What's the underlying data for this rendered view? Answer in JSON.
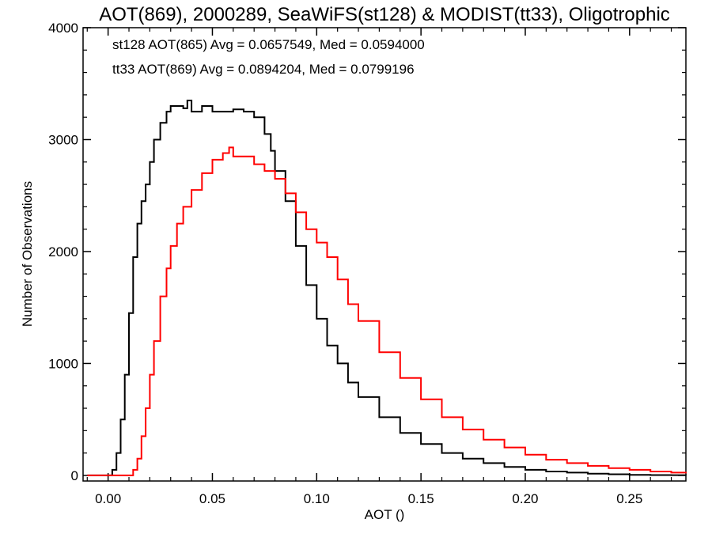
{
  "chart_data": {
    "type": "line",
    "title": "AOT(869), 2000289, SeaWiFS(st128) & MODIST(tt33), Oligotrophic",
    "xlabel": "AOT ()",
    "ylabel": "Number of Observations",
    "xlim": [
      -0.012,
      0.277
    ],
    "ylim": [
      -50,
      4000
    ],
    "xticks": [
      "0.00",
      "0.05",
      "0.10",
      "0.15",
      "0.20",
      "0.25"
    ],
    "xtick_values": [
      0,
      0.05,
      0.1,
      0.15,
      0.2,
      0.25
    ],
    "yticks": [
      "0",
      "1000",
      "2000",
      "3000",
      "4000"
    ],
    "ytick_values": [
      0,
      1000,
      2000,
      3000,
      4000
    ],
    "grid": false,
    "annotations": [
      {
        "text": "st128 AOT(865) Avg = 0.0657549, Med = 0.0594000",
        "color": "#000000"
      },
      {
        "text": "tt33 AOT(869) Avg = 0.0894204, Med = 0.0799196",
        "color": "#ff0000"
      }
    ],
    "series": [
      {
        "color": "#000000",
        "x": [
          -0.01,
          0.0,
          0.002,
          0.004,
          0.006,
          0.008,
          0.01,
          0.012,
          0.014,
          0.016,
          0.018,
          0.02,
          0.022,
          0.025,
          0.028,
          0.03,
          0.033,
          0.036,
          0.038,
          0.04,
          0.045,
          0.05,
          0.055,
          0.06,
          0.065,
          0.07,
          0.075,
          0.078,
          0.08,
          0.085,
          0.09,
          0.095,
          0.1,
          0.105,
          0.11,
          0.115,
          0.12,
          0.13,
          0.14,
          0.15,
          0.16,
          0.17,
          0.18,
          0.19,
          0.2,
          0.21,
          0.22,
          0.23,
          0.24,
          0.25,
          0.26,
          0.27,
          0.277
        ],
        "y": [
          0,
          0,
          50,
          200,
          500,
          900,
          1450,
          1950,
          2250,
          2450,
          2600,
          2800,
          3000,
          3150,
          3250,
          3300,
          3300,
          3280,
          3350,
          3250,
          3300,
          3250,
          3250,
          3270,
          3250,
          3200,
          3050,
          2900,
          2720,
          2450,
          2050,
          1700,
          1400,
          1160,
          1000,
          830,
          700,
          520,
          380,
          280,
          200,
          150,
          110,
          75,
          50,
          35,
          25,
          15,
          10,
          5,
          3,
          2,
          1
        ]
      },
      {
        "color": "#ff0000",
        "x": [
          -0.01,
          0.01,
          0.012,
          0.014,
          0.016,
          0.018,
          0.02,
          0.022,
          0.025,
          0.028,
          0.03,
          0.033,
          0.036,
          0.04,
          0.045,
          0.05,
          0.055,
          0.058,
          0.06,
          0.065,
          0.07,
          0.075,
          0.08,
          0.085,
          0.09,
          0.095,
          0.1,
          0.105,
          0.11,
          0.115,
          0.12,
          0.13,
          0.14,
          0.15,
          0.16,
          0.17,
          0.18,
          0.19,
          0.2,
          0.21,
          0.22,
          0.23,
          0.24,
          0.25,
          0.26,
          0.27,
          0.277
        ],
        "y": [
          0,
          0,
          50,
          150,
          350,
          600,
          900,
          1200,
          1600,
          1850,
          2050,
          2250,
          2400,
          2550,
          2700,
          2820,
          2880,
          2930,
          2850,
          2850,
          2780,
          2720,
          2650,
          2520,
          2350,
          2200,
          2080,
          1950,
          1750,
          1530,
          1380,
          1100,
          870,
          680,
          520,
          410,
          320,
          250,
          185,
          140,
          110,
          85,
          65,
          50,
          35,
          25,
          18
        ]
      }
    ]
  }
}
